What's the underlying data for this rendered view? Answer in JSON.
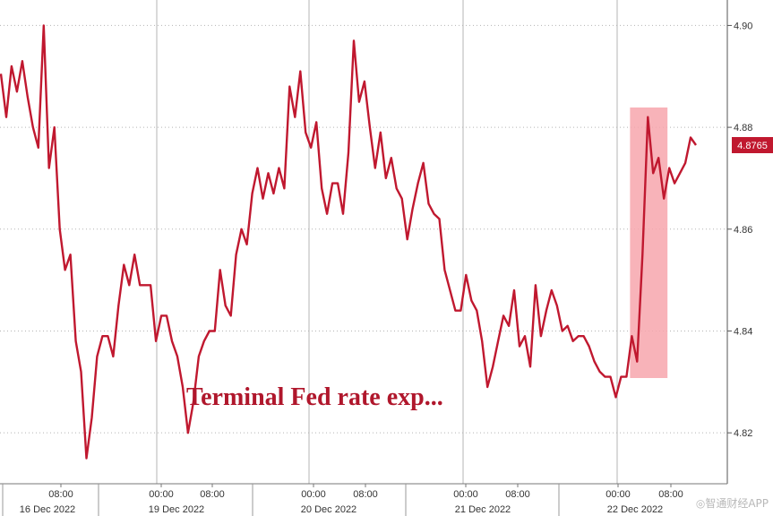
{
  "chart_data": {
    "type": "line",
    "title": "Terminal Fed rate exp...",
    "xlabel": "",
    "ylabel": "",
    "ylim": [
      4.81,
      4.905
    ],
    "y_ticks": [
      "4.82",
      "4.84",
      "4.86",
      "4.88",
      "4.90"
    ],
    "x_time_labels": [
      "08:00",
      "00:00",
      "08:00",
      "00:00",
      "08:00",
      "00:00",
      "08:00",
      "00:00",
      "08:00"
    ],
    "x_date_labels": [
      "16 Dec 2022",
      "19 Dec 2022",
      "20 Dec 2022",
      "21 Dec 2022",
      "22 Dec 2022"
    ],
    "last_value": "4.8765",
    "grid": true,
    "colors": {
      "line": "#c0182f",
      "highlight": "#f7a6ad",
      "last_badge": "#c0182f"
    },
    "series": [
      {
        "values": [
          4.8905,
          4.882,
          4.892,
          4.887,
          4.893,
          4.886,
          4.88,
          4.876,
          4.9,
          4.872,
          4.88,
          4.86,
          4.852,
          4.855,
          4.838,
          4.832,
          4.815,
          4.823,
          4.835,
          4.839,
          4.839,
          4.835,
          4.845,
          4.853,
          4.849,
          4.855,
          4.849,
          4.849,
          4.849,
          4.838,
          4.843,
          4.843,
          4.838,
          4.835,
          4.829,
          4.82,
          4.826,
          4.835,
          4.838,
          4.84,
          4.84,
          4.852,
          4.845,
          4.843,
          4.855,
          4.86,
          4.857,
          4.867,
          4.872,
          4.866,
          4.871,
          4.867,
          4.872,
          4.868,
          4.888,
          4.882,
          4.891,
          4.879,
          4.876,
          4.881,
          4.868,
          4.863,
          4.869,
          4.869,
          4.863,
          4.875,
          4.897,
          4.885,
          4.889,
          4.88,
          4.872,
          4.879,
          4.87,
          4.874,
          4.868,
          4.866,
          4.858,
          4.864,
          4.869,
          4.873,
          4.865,
          4.863,
          4.862,
          4.852,
          4.848,
          4.844,
          4.844,
          4.851,
          4.846,
          4.844,
          4.838,
          4.829,
          4.833,
          4.838,
          4.843,
          4.841,
          4.848,
          4.837,
          4.839,
          4.833,
          4.849,
          4.839,
          4.844,
          4.848,
          4.845,
          4.84,
          4.841,
          4.838,
          4.839,
          4.839,
          4.837,
          4.834,
          4.832,
          4.831,
          4.831,
          4.827,
          4.831,
          4.831,
          4.839,
          4.834,
          4.855,
          4.882,
          4.871,
          4.874,
          4.866,
          4.872,
          4.869,
          4.871,
          4.873,
          4.878,
          4.8765
        ]
      }
    ],
    "highlight_window": {
      "from_index": 118,
      "to_index": 124
    }
  },
  "watermark": "◎智通财经APP"
}
